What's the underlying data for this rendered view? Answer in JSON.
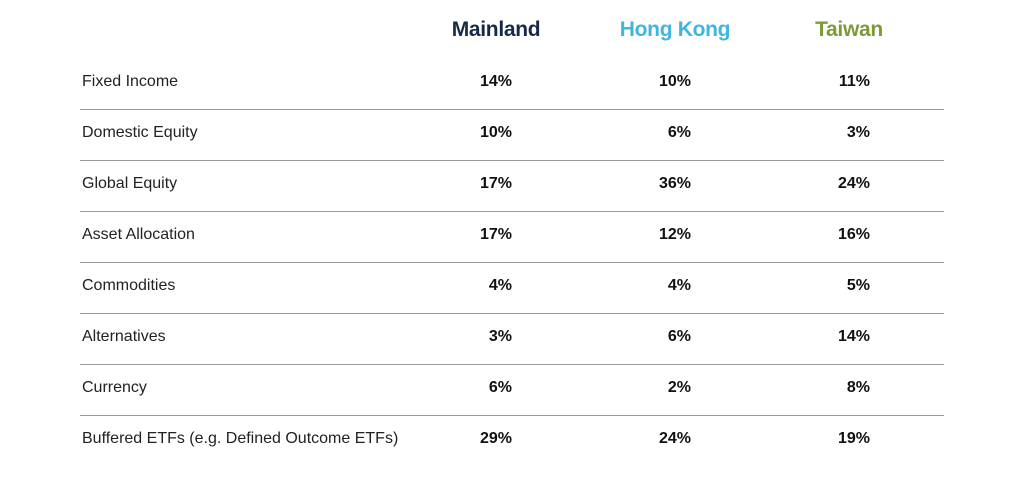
{
  "chart_data": {
    "type": "table",
    "columns": [
      {
        "name": "Mainland",
        "color": "#16294a"
      },
      {
        "name": "Hong Kong",
        "color": "#3fb5e0"
      },
      {
        "name": "Taiwan",
        "color": "#7d9a3a"
      }
    ],
    "rows": [
      {
        "label": "Fixed Income",
        "values": [
          "14%",
          "10%",
          "11%"
        ]
      },
      {
        "label": "Domestic Equity",
        "values": [
          "10%",
          "6%",
          "3%"
        ]
      },
      {
        "label": "Global Equity",
        "values": [
          "17%",
          "36%",
          "24%"
        ]
      },
      {
        "label": "Asset Allocation",
        "values": [
          "17%",
          "12%",
          "16%"
        ]
      },
      {
        "label": "Commodities",
        "values": [
          "4%",
          "4%",
          "5%"
        ]
      },
      {
        "label": "Alternatives",
        "values": [
          "3%",
          "6%",
          "14%"
        ]
      },
      {
        "label": "Currency",
        "values": [
          "6%",
          "2%",
          "8%"
        ]
      },
      {
        "label": "Buffered ETFs (e.g. Defined Outcome ETFs)",
        "values": [
          "29%",
          "24%",
          "19%"
        ]
      }
    ]
  }
}
